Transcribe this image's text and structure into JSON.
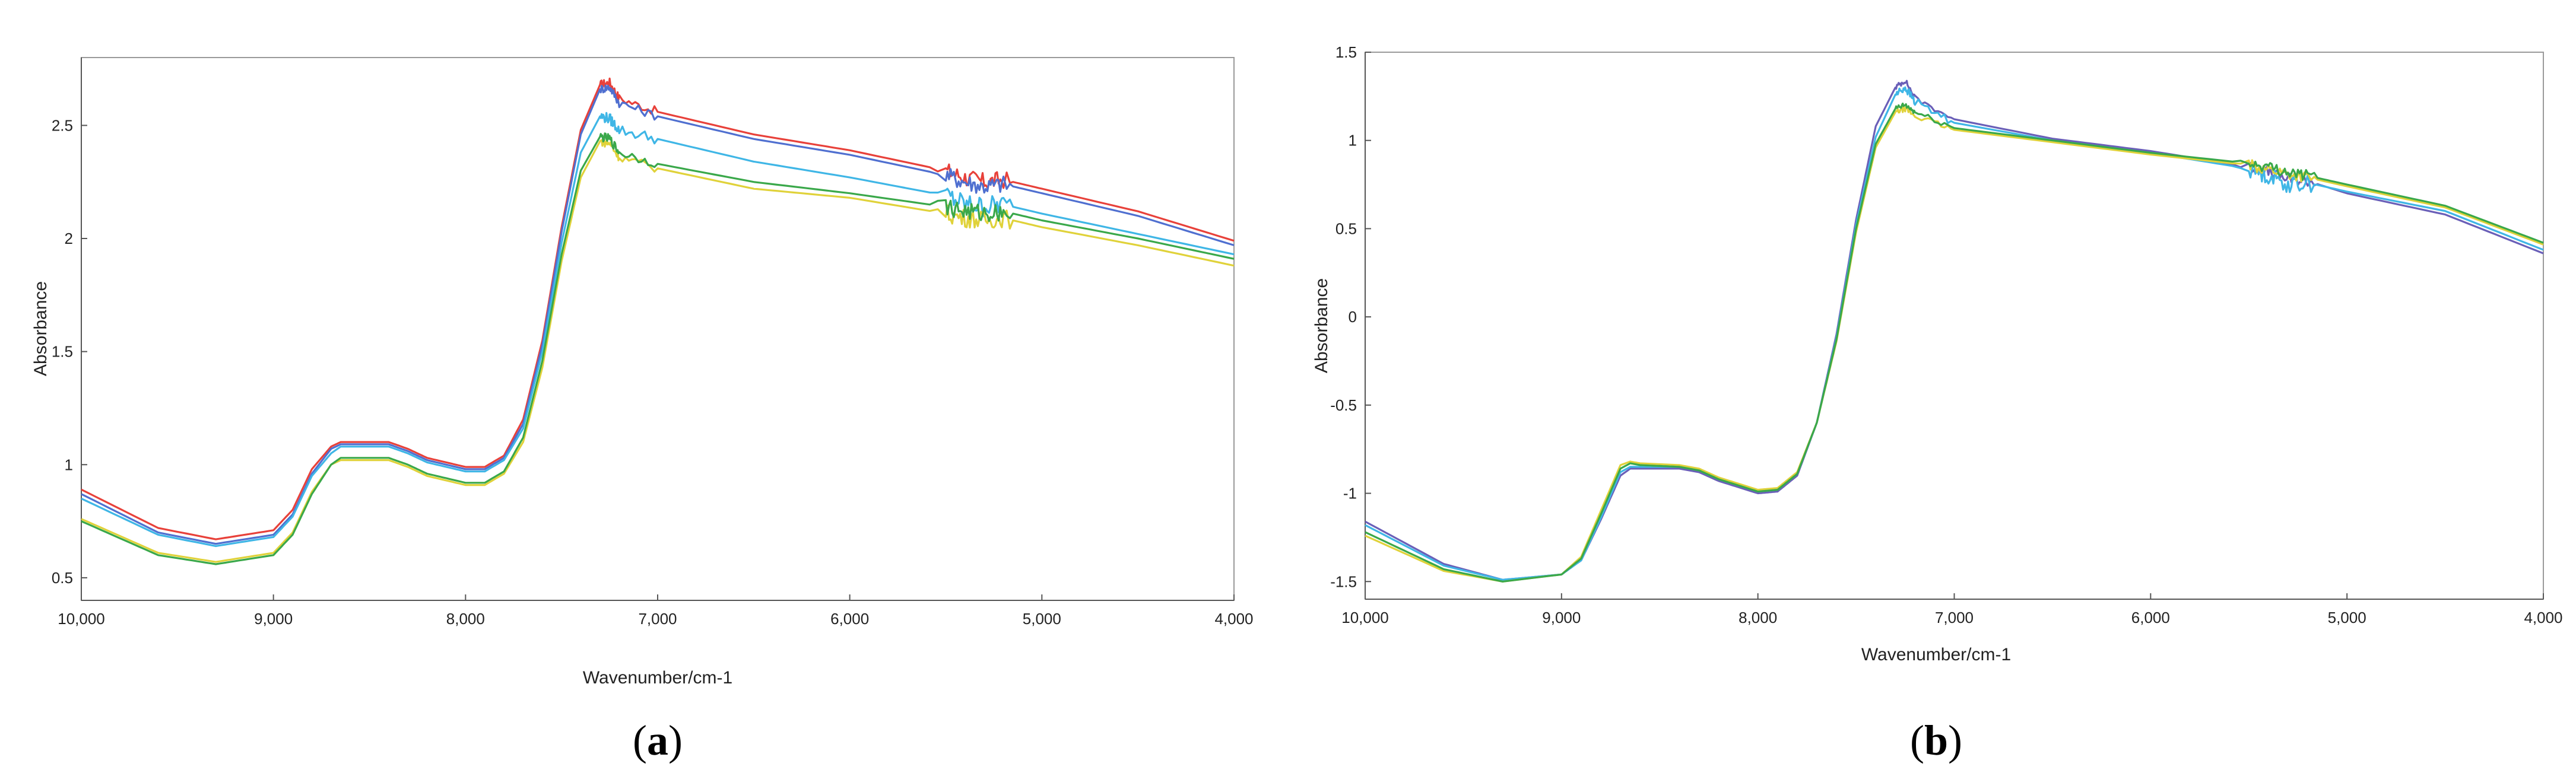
{
  "chart_data": [
    {
      "panel": "a",
      "type": "line",
      "xlabel": "Wavenumber/cm-1",
      "ylabel": "Absorbance",
      "xlim": [
        10000,
        4000
      ],
      "x_reversed": true,
      "ylim": [
        0.4,
        2.8
      ],
      "xticks": [
        10000,
        9000,
        8000,
        7000,
        6000,
        5000,
        4000
      ],
      "xtick_labels": [
        "10,000",
        "9,000",
        "8,000",
        "7,000",
        "6,000",
        "5,000",
        "4,000"
      ],
      "yticks": [
        0.5,
        1,
        1.5,
        2,
        2.5
      ],
      "ytick_labels": [
        "0.5",
        "1",
        "1.5",
        "2",
        "2.5"
      ],
      "grid": false,
      "x": [
        10000,
        9600,
        9300,
        9000,
        8900,
        8800,
        8700,
        8650,
        8600,
        8400,
        8300,
        8200,
        8000,
        7900,
        7800,
        7700,
        7600,
        7500,
        7400,
        7300,
        7250,
        7200,
        7000,
        6500,
        6000,
        5500,
        5400,
        5300,
        5200,
        5000,
        4500,
        4000
      ],
      "series": [
        {
          "color": "#e8413a",
          "noise": 0.05,
          "values": [
            0.89,
            0.72,
            0.67,
            0.71,
            0.8,
            0.98,
            1.08,
            1.1,
            1.1,
            1.1,
            1.07,
            1.03,
            0.99,
            0.99,
            1.04,
            1.2,
            1.55,
            2.05,
            2.48,
            2.68,
            2.69,
            2.62,
            2.56,
            2.46,
            2.39,
            2.3,
            2.27,
            2.25,
            2.26,
            2.22,
            2.12,
            1.99
          ]
        },
        {
          "color": "#4f6fd0",
          "noise": 0.05,
          "values": [
            0.87,
            0.7,
            0.65,
            0.69,
            0.78,
            0.96,
            1.07,
            1.09,
            1.09,
            1.09,
            1.06,
            1.02,
            0.98,
            0.98,
            1.03,
            1.18,
            1.53,
            2.03,
            2.46,
            2.66,
            2.67,
            2.6,
            2.54,
            2.44,
            2.37,
            2.28,
            2.25,
            2.23,
            2.24,
            2.2,
            2.1,
            1.97
          ]
        },
        {
          "color": "#3fb6e6",
          "noise": 0.06,
          "values": [
            0.85,
            0.69,
            0.64,
            0.68,
            0.77,
            0.95,
            1.05,
            1.08,
            1.08,
            1.08,
            1.05,
            1.01,
            0.97,
            0.97,
            1.02,
            1.16,
            1.5,
            1.98,
            2.38,
            2.54,
            2.53,
            2.48,
            2.44,
            2.34,
            2.27,
            2.19,
            2.15,
            2.14,
            2.15,
            2.11,
            2.02,
            1.93
          ]
        },
        {
          "color": "#e0d23a",
          "noise": 0.05,
          "values": [
            0.76,
            0.61,
            0.57,
            0.61,
            0.7,
            0.88,
            1.0,
            1.02,
            1.02,
            1.02,
            0.99,
            0.95,
            0.91,
            0.91,
            0.96,
            1.1,
            1.43,
            1.9,
            2.27,
            2.43,
            2.42,
            2.36,
            2.31,
            2.22,
            2.18,
            2.11,
            2.09,
            2.08,
            2.09,
            2.05,
            1.97,
            1.88
          ]
        },
        {
          "color": "#3aa84a",
          "noise": 0.05,
          "values": [
            0.75,
            0.6,
            0.56,
            0.6,
            0.69,
            0.87,
            1.0,
            1.03,
            1.03,
            1.03,
            1.0,
            0.96,
            0.92,
            0.92,
            0.97,
            1.12,
            1.46,
            1.93,
            2.3,
            2.45,
            2.44,
            2.38,
            2.33,
            2.25,
            2.2,
            2.14,
            2.12,
            2.11,
            2.12,
            2.08,
            2.0,
            1.91
          ]
        }
      ]
    },
    {
      "panel": "b",
      "type": "line",
      "xlabel": "Wavenumber/cm-1",
      "ylabel": "Absorbance",
      "xlim": [
        10000,
        4000
      ],
      "x_reversed": true,
      "ylim": [
        -1.6,
        1.5
      ],
      "xticks": [
        10000,
        9000,
        8000,
        7000,
        6000,
        5000,
        4000
      ],
      "xtick_labels": [
        "10,000",
        "9,000",
        "8,000",
        "7,000",
        "6,000",
        "5,000",
        "4,000"
      ],
      "yticks": [
        -1.5,
        -1,
        -0.5,
        0,
        0.5,
        1,
        1.5
      ],
      "ytick_labels": [
        "-1.5",
        "-1",
        "-0.5",
        "0",
        "0.5",
        "1",
        "1.5"
      ],
      "grid": false,
      "x": [
        10000,
        9600,
        9300,
        9000,
        8900,
        8800,
        8700,
        8650,
        8600,
        8400,
        8300,
        8200,
        8000,
        7900,
        7800,
        7700,
        7600,
        7500,
        7400,
        7300,
        7250,
        7200,
        7000,
        6500,
        6000,
        5500,
        5400,
        5300,
        5200,
        5000,
        4500,
        4000
      ],
      "series": [
        {
          "color": "#6a5fb8",
          "noise": 0.04,
          "values": [
            -1.16,
            -1.4,
            -1.49,
            -1.46,
            -1.38,
            -1.15,
            -0.9,
            -0.86,
            -0.86,
            -0.86,
            -0.88,
            -0.93,
            -1.0,
            -0.99,
            -0.9,
            -0.6,
            -0.1,
            0.55,
            1.08,
            1.3,
            1.34,
            1.24,
            1.12,
            1.01,
            0.94,
            0.85,
            0.82,
            0.78,
            0.77,
            0.7,
            0.58,
            0.36
          ]
        },
        {
          "color": "#3fb6e6",
          "noise": 0.06,
          "values": [
            -1.18,
            -1.41,
            -1.49,
            -1.46,
            -1.38,
            -1.14,
            -0.88,
            -0.85,
            -0.85,
            -0.85,
            -0.87,
            -0.92,
            -0.99,
            -0.98,
            -0.89,
            -0.6,
            -0.12,
            0.52,
            1.02,
            1.26,
            1.3,
            1.22,
            1.1,
            1.0,
            0.93,
            0.84,
            0.8,
            0.75,
            0.76,
            0.71,
            0.6,
            0.38
          ]
        },
        {
          "color": "#e0d23a",
          "noise": 0.04,
          "values": [
            -1.24,
            -1.44,
            -1.5,
            -1.46,
            -1.36,
            -1.1,
            -0.84,
            -0.82,
            -0.83,
            -0.84,
            -0.86,
            -0.91,
            -0.98,
            -0.97,
            -0.88,
            -0.6,
            -0.14,
            0.48,
            0.96,
            1.16,
            1.18,
            1.14,
            1.06,
            0.99,
            0.92,
            0.86,
            0.84,
            0.81,
            0.79,
            0.74,
            0.62,
            0.41
          ]
        },
        {
          "color": "#3aa84a",
          "noise": 0.04,
          "values": [
            -1.22,
            -1.43,
            -1.5,
            -1.46,
            -1.37,
            -1.12,
            -0.86,
            -0.83,
            -0.84,
            -0.85,
            -0.87,
            -0.92,
            -0.99,
            -0.98,
            -0.89,
            -0.6,
            -0.13,
            0.5,
            0.98,
            1.18,
            1.2,
            1.16,
            1.07,
            1.0,
            0.93,
            0.87,
            0.85,
            0.82,
            0.8,
            0.75,
            0.63,
            0.42
          ]
        }
      ]
    }
  ],
  "panel_labels": {
    "a": "a",
    "b": "b"
  }
}
